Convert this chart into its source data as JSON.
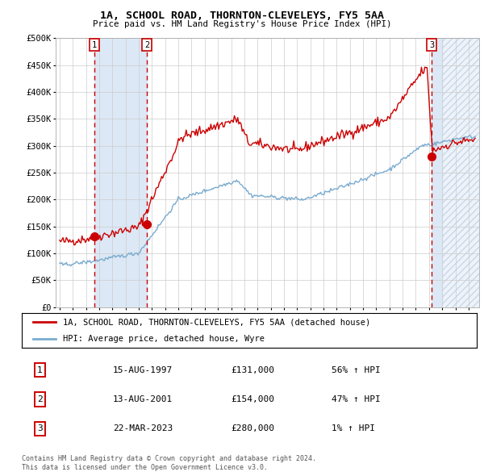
{
  "title": "1A, SCHOOL ROAD, THORNTON-CLEVELEYS, FY5 5AA",
  "subtitle": "Price paid vs. HM Land Registry's House Price Index (HPI)",
  "ylim": [
    0,
    500000
  ],
  "yticks": [
    0,
    50000,
    100000,
    150000,
    200000,
    250000,
    300000,
    350000,
    400000,
    450000,
    500000
  ],
  "ytick_labels": [
    "£0",
    "£50K",
    "£100K",
    "£150K",
    "£200K",
    "£250K",
    "£300K",
    "£350K",
    "£400K",
    "£450K",
    "£500K"
  ],
  "xlim_start": 1994.7,
  "xlim_end": 2026.8,
  "xticks": [
    1995,
    1996,
    1997,
    1998,
    1999,
    2000,
    2001,
    2002,
    2003,
    2004,
    2005,
    2006,
    2007,
    2008,
    2009,
    2010,
    2011,
    2012,
    2013,
    2014,
    2015,
    2016,
    2017,
    2018,
    2019,
    2020,
    2021,
    2022,
    2023,
    2024,
    2025,
    2026
  ],
  "sale_dates": [
    1997.619,
    2001.619,
    2023.22
  ],
  "sale_prices": [
    131000,
    154000,
    280000
  ],
  "sale_labels": [
    "1",
    "2",
    "3"
  ],
  "legend_red": "1A, SCHOOL ROAD, THORNTON-CLEVELEYS, FY5 5AA (detached house)",
  "legend_blue": "HPI: Average price, detached house, Wyre",
  "table_rows": [
    [
      "1",
      "15-AUG-1997",
      "£131,000",
      "56% ↑ HPI"
    ],
    [
      "2",
      "13-AUG-2001",
      "£154,000",
      "47% ↑ HPI"
    ],
    [
      "3",
      "22-MAR-2023",
      "£280,000",
      "1% ↑ HPI"
    ]
  ],
  "footnote1": "Contains HM Land Registry data © Crown copyright and database right 2024.",
  "footnote2": "This data is licensed under the Open Government Licence v3.0.",
  "red_color": "#cc0000",
  "blue_color": "#7aabcf",
  "shade_color": "#dce8f5",
  "hatch_color": "#c8d8e8",
  "shade_end": 2024.0
}
